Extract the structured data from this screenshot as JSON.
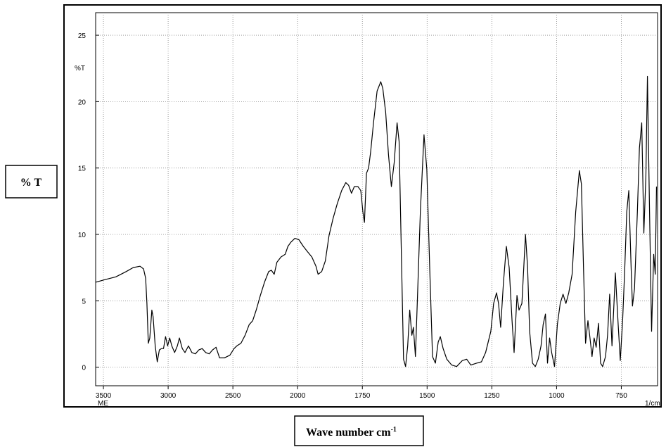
{
  "chart_data": {
    "type": "line",
    "y_label": "% T",
    "y_unit": "%T",
    "x_label": "Wave number cm",
    "x_label_superscript": "-1",
    "x_unit": "1/cm",
    "corner_note": "ME",
    "color": "#000000",
    "grid": true,
    "xlim": [
      3560,
      610
    ],
    "xticks": [
      3500,
      3000,
      2500,
      2000,
      1750,
      1500,
      1250,
      1000,
      750
    ],
    "ylim": [
      -1.4,
      26.7
    ],
    "yticks": [
      0,
      5,
      10,
      15,
      20,
      25
    ],
    "x": [
      3560,
      3484,
      3404,
      3324,
      3270,
      3217,
      3190,
      3174,
      3164,
      3153,
      3142,
      3126,
      3116,
      3100,
      3084,
      3068,
      3052,
      3036,
      3020,
      3004,
      2988,
      2972,
      2950,
      2929,
      2913,
      2891,
      2870,
      2843,
      2817,
      2790,
      2763,
      2737,
      2710,
      2683,
      2657,
      2630,
      2603,
      2566,
      2523,
      2491,
      2470,
      2438,
      2406,
      2374,
      2347,
      2320,
      2288,
      2256,
      2224,
      2203,
      2181,
      2160,
      2128,
      2096,
      2075,
      2053,
      2021,
      1995,
      1978,
      1962,
      1945,
      1929,
      1921,
      1907,
      1893,
      1879,
      1863,
      1847,
      1830,
      1814,
      1803,
      1792,
      1781,
      1767,
      1756,
      1748,
      1742,
      1734,
      1726,
      1718,
      1707,
      1693,
      1679,
      1671,
      1660,
      1649,
      1638,
      1627,
      1616,
      1608,
      1600,
      1591,
      1583,
      1575,
      1567,
      1559,
      1553,
      1545,
      1537,
      1526,
      1512,
      1501,
      1490,
      1479,
      1468,
      1457,
      1449,
      1438,
      1424,
      1405,
      1386,
      1364,
      1347,
      1331,
      1309,
      1290,
      1274,
      1254,
      1243,
      1232,
      1224,
      1216,
      1205,
      1194,
      1183,
      1172,
      1164,
      1153,
      1145,
      1134,
      1120,
      1112,
      1104,
      1093,
      1082,
      1071,
      1060,
      1052,
      1043,
      1035,
      1027,
      1019,
      1008,
      997,
      986,
      975,
      964,
      953,
      940,
      926,
      912,
      904,
      896,
      888,
      879,
      871,
      863,
      855,
      847,
      838,
      830,
      822,
      811,
      803,
      795,
      786,
      778,
      773,
      762,
      754,
      745,
      737,
      729,
      721,
      712,
      707,
      699,
      688,
      680,
      671,
      663,
      655,
      649,
      641,
      633,
      625,
      619,
      614
    ],
    "values": [
      6.4,
      6.6,
      6.8,
      7.2,
      7.5,
      7.6,
      7.4,
      6.7,
      4.8,
      1.8,
      2.2,
      4.3,
      3.8,
      1.6,
      0.4,
      1.3,
      1.4,
      1.4,
      2.3,
      1.6,
      2.2,
      1.6,
      1.1,
      1.6,
      2.2,
      1.4,
      1.1,
      1.6,
      1.1,
      1.0,
      1.3,
      1.4,
      1.1,
      1.0,
      1.3,
      1.5,
      0.7,
      0.7,
      0.9,
      1.4,
      1.6,
      1.8,
      2.4,
      3.2,
      3.5,
      4.3,
      5.4,
      6.4,
      7.2,
      7.3,
      7.0,
      7.9,
      8.3,
      8.5,
      9.1,
      9.4,
      9.7,
      9.6,
      9.1,
      8.7,
      8.3,
      7.6,
      7.0,
      7.2,
      8.0,
      9.9,
      11.2,
      12.3,
      13.3,
      13.9,
      13.7,
      13.1,
      13.6,
      13.6,
      13.3,
      11.7,
      10.9,
      14.6,
      15.0,
      16.2,
      18.4,
      20.8,
      21.5,
      21.0,
      19.2,
      16.0,
      13.6,
      15.4,
      18.4,
      17.0,
      9.1,
      0.6,
      0.05,
      1.6,
      4.3,
      2.4,
      3.0,
      0.8,
      5.4,
      11.7,
      17.5,
      14.9,
      7.5,
      0.8,
      0.3,
      1.9,
      2.3,
      1.4,
      0.6,
      0.16,
      0.05,
      0.5,
      0.6,
      0.16,
      0.3,
      0.4,
      1.1,
      2.7,
      4.8,
      5.6,
      4.8,
      3.0,
      6.4,
      9.1,
      7.5,
      3.5,
      1.1,
      5.4,
      4.3,
      4.8,
      10.0,
      7.5,
      2.7,
      0.3,
      0.05,
      0.6,
      1.6,
      3.2,
      4.0,
      0.3,
      2.2,
      1.1,
      0.05,
      3.2,
      4.8,
      5.5,
      4.8,
      5.6,
      7.0,
      11.7,
      14.8,
      13.8,
      7.5,
      1.8,
      3.5,
      2.2,
      0.8,
      2.2,
      1.5,
      3.3,
      0.3,
      0.05,
      0.8,
      2.4,
      5.5,
      1.6,
      4.9,
      7.1,
      3.2,
      0.5,
      3.5,
      7.2,
      11.7,
      13.3,
      7.5,
      4.6,
      5.9,
      11.7,
      16.5,
      18.4,
      10.1,
      14.4,
      21.9,
      11.7,
      2.7,
      8.5,
      7.0,
      13.6
    ]
  }
}
